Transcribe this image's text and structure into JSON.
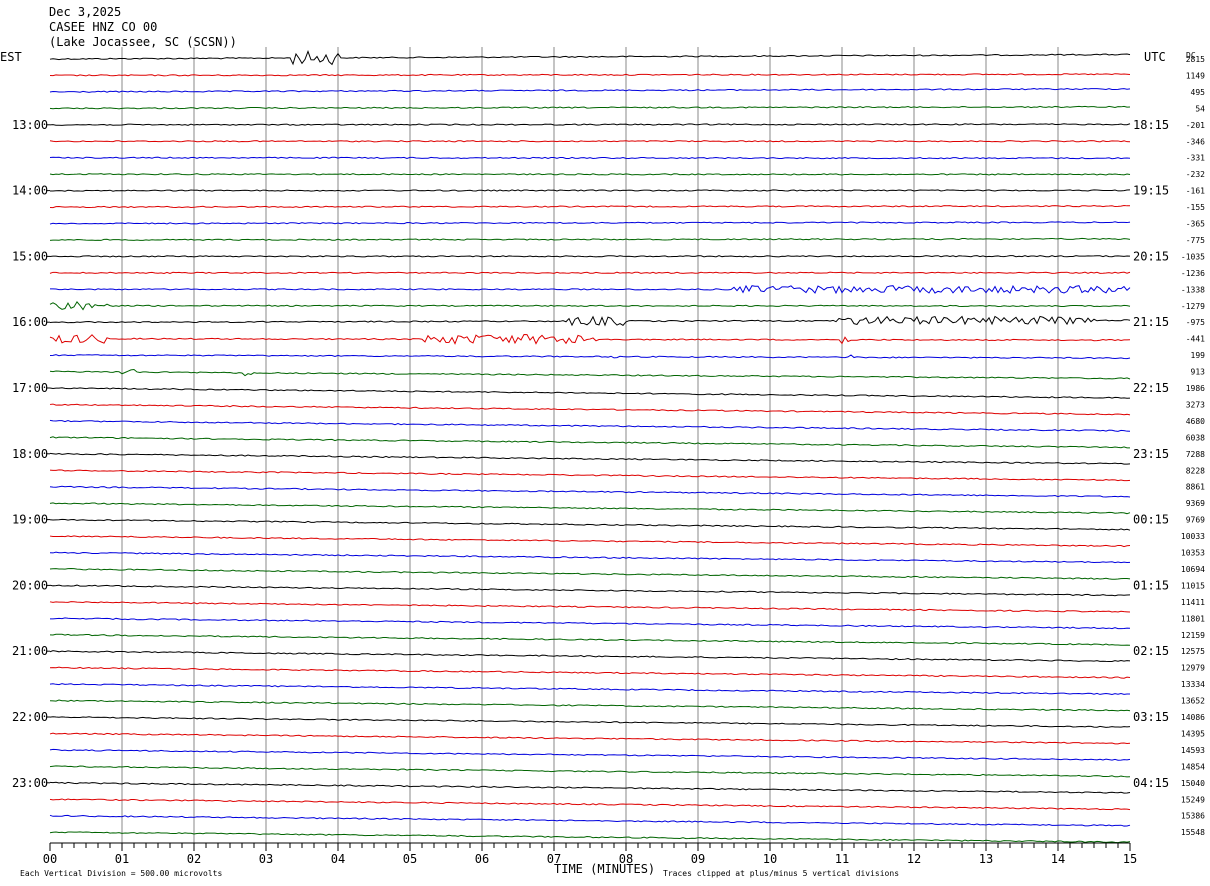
{
  "header": {
    "date": "Dec 3,2025",
    "station": "CASEE HNZ CO 00",
    "location": "(Lake Jocassee, SC (SCSN))"
  },
  "labels": {
    "left_timezone": "EST",
    "right_timezone": "UTC",
    "dc_header": "DC",
    "x_axis_title": "TIME (MINUTES)",
    "scale_note": "Each Vertical Division =  500.00 microvolts",
    "clip_note": "Traces clipped at plus/minus 5 vertical divisions"
  },
  "chart_data": {
    "type": "helicorder",
    "title": "CASEE HNZ CO 00",
    "xlabel": "TIME (MINUTES)",
    "xlim": [
      0,
      15
    ],
    "x_ticks": [
      "00",
      "01",
      "02",
      "03",
      "04",
      "05",
      "06",
      "07",
      "08",
      "09",
      "10",
      "11",
      "12",
      "13",
      "14",
      "15"
    ],
    "rows_per_hour": 4,
    "trace_colors": [
      "#000000",
      "#dd0000",
      "#0000dd",
      "#006400"
    ],
    "grid": true,
    "left_hour_labels": [
      "13:00",
      "14:00",
      "15:00",
      "16:00",
      "17:00",
      "18:00",
      "19:00",
      "20:00",
      "21:00",
      "22:00",
      "23:00"
    ],
    "right_hour_labels": [
      "18:15",
      "19:15",
      "20:15",
      "21:15",
      "22:15",
      "23:15",
      "00:15",
      "01:15",
      "02:15",
      "03:15",
      "04:15"
    ],
    "dc_offsets": [
      "2815",
      "1149",
      "495",
      "54",
      "-201",
      "-346",
      "-331",
      "-232",
      "-161",
      "-155",
      "-365",
      "-775",
      "-1035",
      "-1236",
      "-1338",
      "-1279",
      "-975",
      "-441",
      "199",
      "913",
      "1986",
      "3273",
      "4680",
      "6038",
      "7288",
      "8228",
      "8861",
      "9369",
      "9769",
      "10033",
      "10353",
      "10694",
      "11015",
      "11411",
      "11801",
      "12159",
      "12575",
      "12979",
      "13334",
      "13652",
      "14086",
      "14395",
      "14593",
      "14854",
      "15040",
      "15249",
      "15386",
      "15548"
    ],
    "row_slope": [
      -0.45,
      -0.12,
      -0.3,
      -0.15,
      -0.05,
      0,
      0.05,
      0.03,
      -0.02,
      -0.1,
      -0.12,
      -0.1,
      -0.02,
      -0.01,
      0.01,
      0.02,
      -0.2,
      0.15,
      0.3,
      0.7,
      1.0,
      1.0,
      1.0,
      1.0,
      1.0,
      1.0,
      1.0,
      1.0,
      1.0,
      1.0,
      1.0,
      1.0,
      1.0,
      1.0,
      1.0,
      1.0,
      1.0,
      1.0,
      1.0,
      1.0,
      1.0,
      1.0,
      1.0,
      1.0,
      1.0,
      1.0,
      1.0,
      1.0
    ],
    "events": [
      {
        "row": 0,
        "start_min": 3.3,
        "end_min": 4.0,
        "amplitude": 0.9
      },
      {
        "row": 14,
        "start_min": 9.5,
        "end_min": 15.0,
        "amplitude": 0.5
      },
      {
        "row": 15,
        "start_min": 0.0,
        "end_min": 0.8,
        "amplitude": 0.6
      },
      {
        "row": 16,
        "start_min": 7.2,
        "end_min": 8.0,
        "amplitude": 0.6
      },
      {
        "row": 16,
        "start_min": 10.9,
        "end_min": 14.5,
        "amplitude": 0.55
      },
      {
        "row": 17,
        "start_min": 0.0,
        "end_min": 0.8,
        "amplitude": 0.6
      },
      {
        "row": 17,
        "start_min": 5.2,
        "end_min": 7.6,
        "amplitude": 0.65
      },
      {
        "row": 17,
        "start_min": 11.0,
        "end_min": 11.1,
        "amplitude": 0.8
      },
      {
        "row": 18,
        "start_min": 7.8,
        "end_min": 7.9,
        "amplitude": 0.6
      },
      {
        "row": 18,
        "start_min": 11.1,
        "end_min": 11.2,
        "amplitude": 0.7
      },
      {
        "row": 19,
        "start_min": 1.0,
        "end_min": 1.2,
        "amplitude": 0.5
      },
      {
        "row": 19,
        "start_min": 2.7,
        "end_min": 2.8,
        "amplitude": 0.5
      }
    ]
  }
}
